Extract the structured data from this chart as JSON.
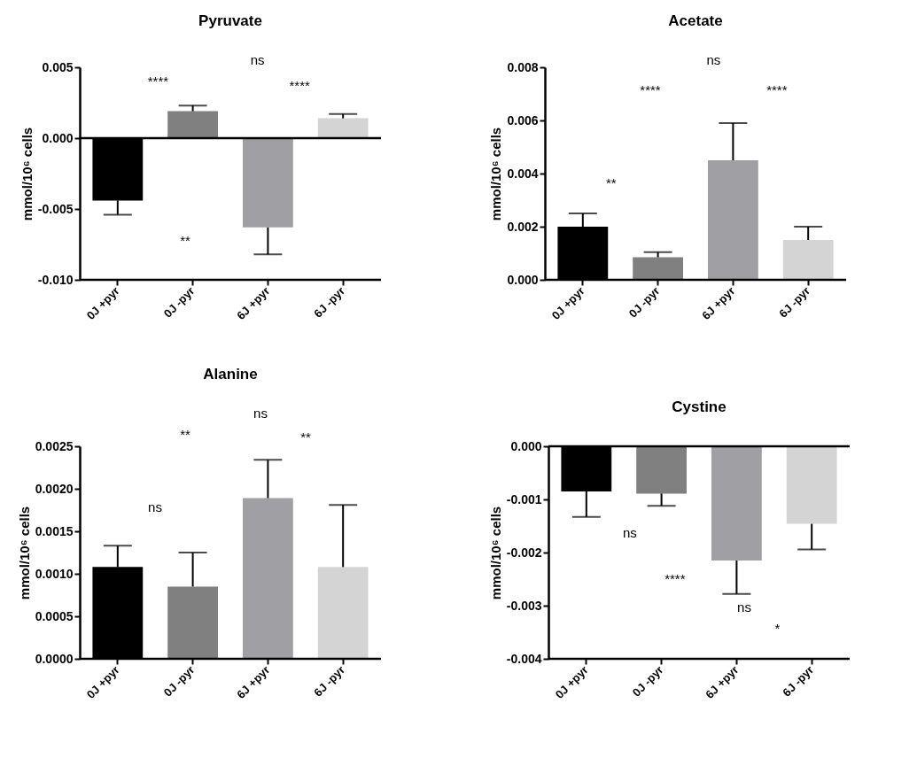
{
  "chart_data": [
    {
      "type": "bar",
      "title": "Pyruvate",
      "ylabel": "mmol/10⁶ cells",
      "categories": [
        "0J +pyr",
        "0J -pyr",
        "6J +pyr",
        "6J -pyr"
      ],
      "values": [
        -0.0044,
        0.0019,
        -0.0063,
        0.0014
      ],
      "colors": [
        "#000000",
        "#808080",
        "#a0a0a4",
        "#d4d4d4"
      ],
      "errors": [
        [
          -0.0054,
          -0.0044
        ],
        [
          0.0019,
          0.0023
        ],
        [
          -0.0082,
          -0.0063
        ],
        [
          0.0014,
          0.0017
        ]
      ],
      "ylim": [
        -0.01,
        0.005
      ],
      "yticks": [
        {
          "value": -0.01,
          "label": "-0.010"
        },
        {
          "value": -0.005,
          "label": "-0.005"
        },
        {
          "value": 0,
          "label": "0.000"
        },
        {
          "value": 0.005,
          "label": "0.005"
        }
      ],
      "ref_lines": [
        {
          "axis": "y",
          "value": 0
        }
      ],
      "annotations": [
        "****",
        "ns",
        "****",
        "**"
      ]
    },
    {
      "type": "bar",
      "title": "Acetate",
      "ylabel": "mmol/10⁶ cells",
      "categories": [
        "0J +pyr",
        "0J -pyr",
        "6J +pyr",
        "6J -pyr"
      ],
      "values": [
        0.002,
        0.00085,
        0.0045,
        0.0015
      ],
      "colors": [
        "#000000",
        "#808080",
        "#a0a0a4",
        "#d4d4d4"
      ],
      "errors": [
        [
          0.002,
          0.0025
        ],
        [
          0.00085,
          0.00104
        ],
        [
          0.0045,
          0.0059
        ],
        [
          0.0015,
          0.002
        ]
      ],
      "ylim": [
        0,
        0.008
      ],
      "yticks": [
        {
          "value": 0,
          "label": "0.000"
        },
        {
          "value": 0.002,
          "label": "0.002"
        },
        {
          "value": 0.004,
          "label": "0.004"
        },
        {
          "value": 0.006,
          "label": "0.006"
        },
        {
          "value": 0.008,
          "label": "0.008"
        }
      ],
      "annotations": [
        "ns",
        "****",
        "****",
        "**"
      ]
    },
    {
      "type": "bar",
      "title": "Alanine",
      "ylabel": "mmol/10⁶ cells",
      "categories": [
        "0J +pyr",
        "0J -pyr",
        "6J +pyr",
        "6J -pyr"
      ],
      "values": [
        0.00108,
        0.00085,
        0.00189,
        0.00108
      ],
      "colors": [
        "#000000",
        "#808080",
        "#a0a0a4",
        "#d4d4d4"
      ],
      "errors": [
        [
          0.00108,
          0.00133
        ],
        [
          0.00085,
          0.00125
        ],
        [
          0.00189,
          0.00234
        ],
        [
          0.00108,
          0.00181
        ]
      ],
      "ylim": [
        0,
        0.0025
      ],
      "yticks": [
        {
          "value": 0,
          "label": "0.0000"
        },
        {
          "value": 0.0005,
          "label": "0.0005"
        },
        {
          "value": 0.001,
          "label": "0.0010"
        },
        {
          "value": 0.0015,
          "label": "0.0015"
        },
        {
          "value": 0.002,
          "label": "0.0020"
        },
        {
          "value": 0.0025,
          "label": "0.0025"
        }
      ],
      "annotations": [
        "ns",
        "**",
        "**",
        "ns"
      ]
    },
    {
      "type": "bar",
      "title": "Cystine",
      "ylabel": "mmol/10⁶ cells",
      "categories": [
        "0J +pyr",
        "0J -pyr",
        "6J +pyr",
        "6J -pyr"
      ],
      "values": [
        -0.00085,
        -0.00089,
        -0.00215,
        -0.00146
      ],
      "colors": [
        "#000000",
        "#808080",
        "#a0a0a4",
        "#d4d4d4"
      ],
      "errors": [
        [
          -0.00133,
          -0.00085
        ],
        [
          -0.00112,
          -0.00089
        ],
        [
          -0.00278,
          -0.00215
        ],
        [
          -0.00194,
          -0.00146
        ]
      ],
      "ylim": [
        -0.004,
        0
      ],
      "yticks": [
        {
          "value": -0.004,
          "label": "-0.004"
        },
        {
          "value": -0.003,
          "label": "-0.003"
        },
        {
          "value": -0.002,
          "label": "-0.002"
        },
        {
          "value": -0.001,
          "label": "-0.001"
        },
        {
          "value": 0,
          "label": "0.000"
        }
      ],
      "ref_lines": [
        {
          "axis": "y",
          "value": 0
        }
      ],
      "annotations": [
        "ns",
        "****",
        "ns",
        "*"
      ]
    }
  ]
}
